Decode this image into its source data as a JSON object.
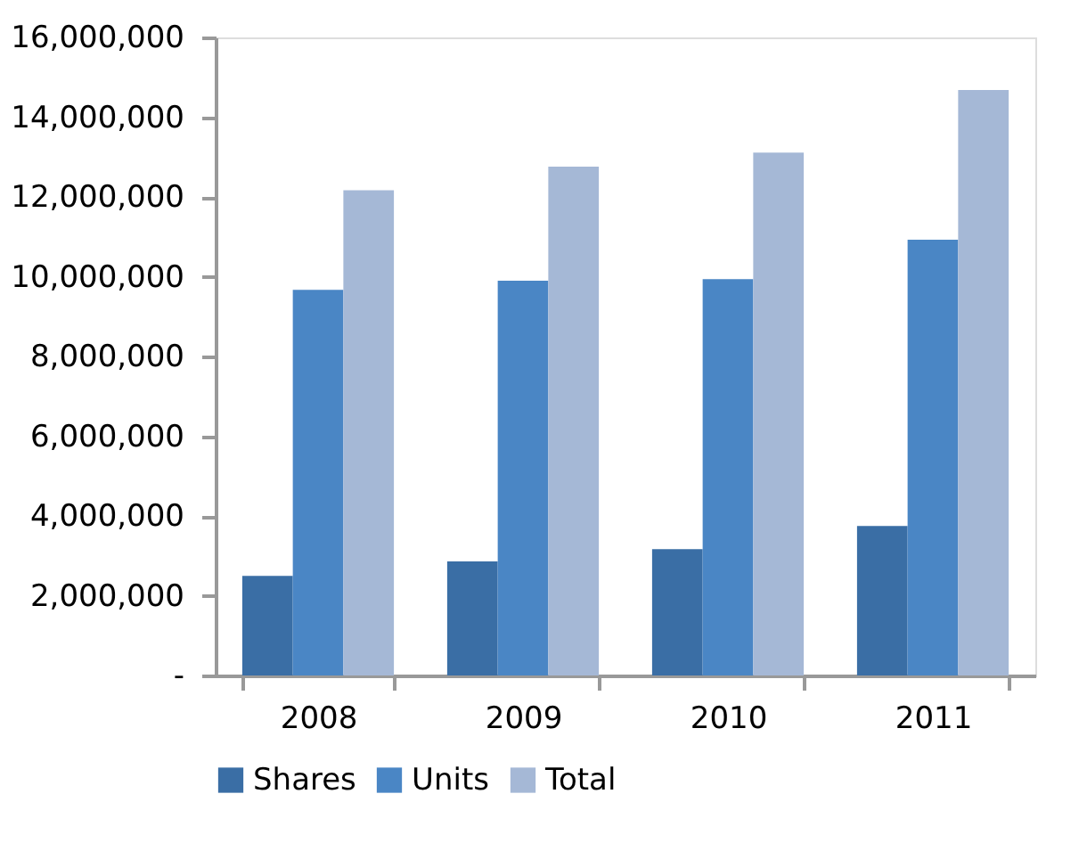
{
  "chart_data": {
    "type": "bar",
    "categories": [
      "2008",
      "2009",
      "2010",
      "2011"
    ],
    "series": [
      {
        "name": "Shares",
        "color": "#3a6ea5",
        "values": [
          2500000,
          2860000,
          3170000,
          3750000
        ]
      },
      {
        "name": "Units",
        "color": "#4a86c5",
        "values": [
          9670000,
          9900000,
          9940000,
          10930000
        ]
      },
      {
        "name": "Total",
        "color": "#a5b8d6",
        "values": [
          12170000,
          12760000,
          13110000,
          14680000
        ]
      }
    ],
    "ylim": [
      0,
      16000000
    ],
    "yticks": [
      {
        "value": 0,
        "label": "-"
      },
      {
        "value": 2000000,
        "label": "2,000,000"
      },
      {
        "value": 4000000,
        "label": "4,000,000"
      },
      {
        "value": 6000000,
        "label": "6,000,000"
      },
      {
        "value": 8000000,
        "label": "8,000,000"
      },
      {
        "value": 10000000,
        "label": "10,000,000"
      },
      {
        "value": 12000000,
        "label": "12,000,000"
      },
      {
        "value": 14000000,
        "label": "14,000,000"
      },
      {
        "value": 16000000,
        "label": "16,000,000"
      }
    ],
    "grid": false,
    "legend": "bottom"
  }
}
